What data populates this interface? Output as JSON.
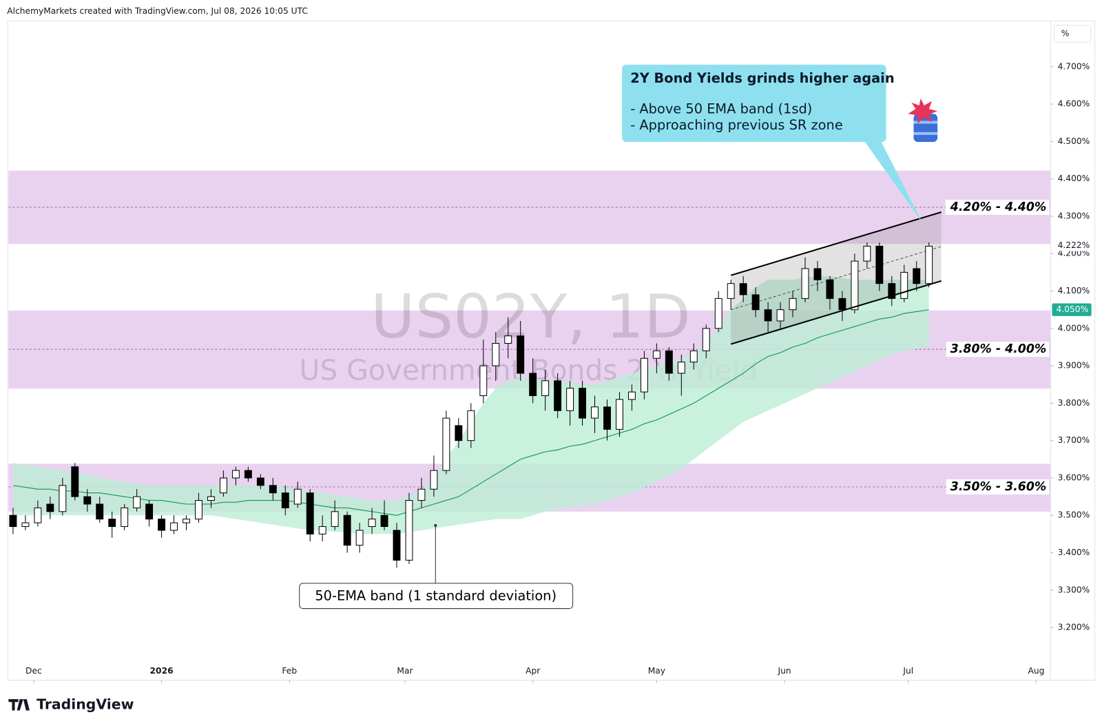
{
  "header": "AlchemyMarkets created with TradingView.com, Jul 08, 2026 10:05 UTC",
  "logo": "TradingView",
  "chart_data": {
    "type": "candlestick",
    "symbol": "US02Y, 1D",
    "symbol_name": "US Government Bonds 2 Yr Yield",
    "unit": "%",
    "x": [
      -5,
      -2,
      1,
      4,
      7,
      10,
      13,
      16,
      19,
      22,
      25,
      28,
      31,
      34,
      37,
      40,
      43,
      46,
      49,
      52,
      55,
      58,
      61,
      64,
      67,
      70,
      73,
      76,
      79,
      82,
      85,
      88,
      91,
      94,
      97,
      100,
      103,
      106,
      109,
      112,
      115,
      118,
      121,
      124,
      127,
      130,
      133,
      136,
      139,
      142,
      145,
      148,
      151,
      154,
      157,
      160,
      163,
      166,
      169,
      172,
      175,
      178,
      181,
      184,
      187,
      190,
      193,
      196,
      199,
      202,
      205,
      208,
      211,
      214,
      217
    ],
    "candles": [
      [
        3.5,
        3.52,
        3.45,
        3.47
      ],
      [
        3.47,
        3.5,
        3.46,
        3.48
      ],
      [
        3.48,
        3.54,
        3.47,
        3.52
      ],
      [
        3.53,
        3.55,
        3.49,
        3.51
      ],
      [
        3.51,
        3.6,
        3.5,
        3.58
      ],
      [
        3.63,
        3.64,
        3.54,
        3.55
      ],
      [
        3.55,
        3.57,
        3.51,
        3.53
      ],
      [
        3.53,
        3.55,
        3.48,
        3.49
      ],
      [
        3.49,
        3.51,
        3.44,
        3.47
      ],
      [
        3.47,
        3.53,
        3.46,
        3.52
      ],
      [
        3.52,
        3.57,
        3.51,
        3.55
      ],
      [
        3.53,
        3.54,
        3.47,
        3.49
      ],
      [
        3.49,
        3.5,
        3.44,
        3.46
      ],
      [
        3.46,
        3.5,
        3.45,
        3.48
      ],
      [
        3.48,
        3.5,
        3.46,
        3.49
      ],
      [
        3.49,
        3.56,
        3.48,
        3.54
      ],
      [
        3.54,
        3.57,
        3.52,
        3.55
      ],
      [
        3.56,
        3.62,
        3.55,
        3.6
      ],
      [
        3.6,
        3.63,
        3.58,
        3.62
      ],
      [
        3.62,
        3.63,
        3.59,
        3.6
      ],
      [
        3.6,
        3.61,
        3.57,
        3.58
      ],
      [
        3.58,
        3.6,
        3.54,
        3.56
      ],
      [
        3.56,
        3.58,
        3.5,
        3.52
      ],
      [
        3.53,
        3.59,
        3.52,
        3.57
      ],
      [
        3.56,
        3.57,
        3.43,
        3.45
      ],
      [
        3.45,
        3.5,
        3.43,
        3.47
      ],
      [
        3.47,
        3.54,
        3.46,
        3.51
      ],
      [
        3.5,
        3.51,
        3.4,
        3.42
      ],
      [
        3.42,
        3.48,
        3.4,
        3.46
      ],
      [
        3.47,
        3.52,
        3.45,
        3.49
      ],
      [
        3.5,
        3.54,
        3.46,
        3.47
      ],
      [
        3.46,
        3.48,
        3.36,
        3.38
      ],
      [
        3.38,
        3.56,
        3.37,
        3.54
      ],
      [
        3.54,
        3.6,
        3.52,
        3.57
      ],
      [
        3.57,
        3.66,
        3.55,
        3.62
      ],
      [
        3.62,
        3.78,
        3.61,
        3.76
      ],
      [
        3.74,
        3.76,
        3.68,
        3.7
      ],
      [
        3.7,
        3.8,
        3.68,
        3.78
      ],
      [
        3.82,
        3.97,
        3.8,
        3.9
      ],
      [
        3.9,
        3.99,
        3.86,
        3.96
      ],
      [
        3.96,
        4.03,
        3.92,
        3.98
      ],
      [
        3.98,
        4.02,
        3.86,
        3.88
      ],
      [
        3.88,
        3.92,
        3.8,
        3.82
      ],
      [
        3.82,
        3.89,
        3.78,
        3.86
      ],
      [
        3.86,
        3.88,
        3.76,
        3.78
      ],
      [
        3.78,
        3.86,
        3.74,
        3.84
      ],
      [
        3.84,
        3.86,
        3.74,
        3.76
      ],
      [
        3.76,
        3.82,
        3.72,
        3.79
      ],
      [
        3.79,
        3.81,
        3.7,
        3.73
      ],
      [
        3.73,
        3.83,
        3.71,
        3.81
      ],
      [
        3.81,
        3.85,
        3.78,
        3.83
      ],
      [
        3.83,
        3.94,
        3.81,
        3.92
      ],
      [
        3.92,
        3.96,
        3.88,
        3.94
      ],
      [
        3.94,
        3.95,
        3.86,
        3.88
      ],
      [
        3.88,
        3.93,
        3.82,
        3.91
      ],
      [
        3.91,
        3.96,
        3.89,
        3.94
      ],
      [
        3.94,
        4.01,
        3.92,
        4.0
      ],
      [
        4.0,
        4.1,
        3.99,
        4.08
      ],
      [
        4.08,
        4.13,
        4.05,
        4.12
      ],
      [
        4.12,
        4.14,
        4.07,
        4.09
      ],
      [
        4.09,
        4.11,
        4.03,
        4.05
      ],
      [
        4.05,
        4.07,
        3.99,
        4.02
      ],
      [
        4.02,
        4.07,
        4.0,
        4.05
      ],
      [
        4.05,
        4.1,
        4.03,
        4.08
      ],
      [
        4.08,
        4.19,
        4.07,
        4.16
      ],
      [
        4.16,
        4.18,
        4.1,
        4.13
      ],
      [
        4.13,
        4.14,
        4.05,
        4.08
      ],
      [
        4.08,
        4.1,
        4.02,
        4.05
      ],
      [
        4.05,
        4.2,
        4.04,
        4.18
      ],
      [
        4.18,
        4.23,
        4.16,
        4.22
      ],
      [
        4.22,
        4.23,
        4.1,
        4.12
      ],
      [
        4.12,
        4.14,
        4.06,
        4.08
      ],
      [
        4.08,
        4.17,
        4.07,
        4.15
      ],
      [
        4.16,
        4.18,
        4.1,
        4.12
      ],
      [
        4.12,
        4.23,
        4.11,
        4.22
      ]
    ],
    "ema": [
      3.58,
      3.575,
      3.57,
      3.57,
      3.565,
      3.565,
      3.56,
      3.56,
      3.555,
      3.55,
      3.545,
      3.54,
      3.54,
      3.535,
      3.53,
      3.53,
      3.53,
      3.535,
      3.535,
      3.54,
      3.54,
      3.54,
      3.54,
      3.535,
      3.53,
      3.525,
      3.52,
      3.52,
      3.515,
      3.51,
      3.505,
      3.5,
      3.51,
      3.52,
      3.53,
      3.54,
      3.55,
      3.57,
      3.59,
      3.61,
      3.63,
      3.65,
      3.66,
      3.67,
      3.675,
      3.685,
      3.69,
      3.7,
      3.71,
      3.72,
      3.73,
      3.745,
      3.755,
      3.77,
      3.785,
      3.8,
      3.82,
      3.84,
      3.86,
      3.88,
      3.905,
      3.925,
      3.935,
      3.95,
      3.96,
      3.975,
      3.985,
      3.995,
      4.005,
      4.015,
      4.025,
      4.03,
      4.04,
      4.045,
      4.05
    ],
    "band_upper": [
      3.64,
      3.635,
      3.63,
      3.625,
      3.62,
      3.615,
      3.61,
      3.6,
      3.595,
      3.59,
      3.585,
      3.58,
      3.58,
      3.58,
      3.58,
      3.58,
      3.58,
      3.58,
      3.58,
      3.58,
      3.58,
      3.58,
      3.575,
      3.57,
      3.565,
      3.56,
      3.555,
      3.55,
      3.545,
      3.54,
      3.54,
      3.54,
      3.55,
      3.57,
      3.6,
      3.65,
      3.7,
      3.75,
      3.8,
      3.84,
      3.86,
      3.87,
      3.87,
      3.86,
      3.86,
      3.855,
      3.85,
      3.85,
      3.86,
      3.87,
      3.88,
      3.89,
      3.9,
      3.91,
      3.92,
      3.935,
      3.96,
      4.0,
      4.05,
      4.08,
      4.11,
      4.13,
      4.13,
      4.13,
      4.135,
      4.14,
      4.14,
      4.135,
      4.13,
      4.13,
      4.13,
      4.13,
      4.13,
      4.13,
      4.13
    ],
    "band_lower": [
      3.5,
      3.5,
      3.5,
      3.5,
      3.5,
      3.5,
      3.5,
      3.5,
      3.5,
      3.5,
      3.5,
      3.5,
      3.5,
      3.5,
      3.5,
      3.5,
      3.5,
      3.495,
      3.49,
      3.485,
      3.48,
      3.475,
      3.47,
      3.465,
      3.46,
      3.46,
      3.455,
      3.455,
      3.45,
      3.45,
      3.45,
      3.45,
      3.455,
      3.46,
      3.465,
      3.47,
      3.475,
      3.48,
      3.485,
      3.49,
      3.49,
      3.49,
      3.5,
      3.51,
      3.515,
      3.52,
      3.525,
      3.53,
      3.54,
      3.55,
      3.56,
      3.575,
      3.59,
      3.605,
      3.625,
      3.65,
      3.675,
      3.7,
      3.725,
      3.75,
      3.765,
      3.78,
      3.795,
      3.81,
      3.825,
      3.84,
      3.855,
      3.87,
      3.885,
      3.9,
      3.915,
      3.93,
      3.94,
      3.945,
      3.95
    ],
    "colors": {
      "up": "#ffffff",
      "down": "#000000",
      "outline": "#000000",
      "ema": "#1e9e5a",
      "band": "#bdeed6",
      "zone": "#e9d2ef",
      "zone_line": "#9c4bb0",
      "channel": "#8a8a8a",
      "callout": "#8fe0ef",
      "ema_label": "#22ab94"
    },
    "xlim": [
      -6.1,
      246.5
    ],
    "ylim": [
      3.059,
      4.822
    ],
    "xticks": [
      {
        "value": 0,
        "label": "Dec"
      },
      {
        "value": 31,
        "label": "2026"
      },
      {
        "value": 62,
        "label": "Feb"
      },
      {
        "value": 90,
        "label": "Mar"
      },
      {
        "value": 121,
        "label": "Apr"
      },
      {
        "value": 151,
        "label": "May"
      },
      {
        "value": 182,
        "label": "Jun"
      },
      {
        "value": 212,
        "label": "Jul"
      },
      {
        "value": 243,
        "label": "Aug"
      }
    ],
    "yticks": [
      {
        "value": 3.2,
        "label": "3.200%"
      },
      {
        "value": 3.3,
        "label": "3.300%"
      },
      {
        "value": 3.4,
        "label": "3.400%"
      },
      {
        "value": 3.5,
        "label": "3.500%"
      },
      {
        "value": 3.6,
        "label": "3.600%"
      },
      {
        "value": 3.7,
        "label": "3.700%"
      },
      {
        "value": 3.8,
        "label": "3.800%"
      },
      {
        "value": 3.9,
        "label": "3.900%"
      },
      {
        "value": 4.0,
        "label": "4.000%"
      },
      {
        "value": 4.1,
        "label": "4.100%"
      },
      {
        "value": 4.2,
        "label": "4.200%"
      },
      {
        "value": 4.3,
        "label": "4.300%"
      },
      {
        "value": 4.4,
        "label": "4.400%"
      },
      {
        "value": 4.5,
        "label": "4.500%"
      },
      {
        "value": 4.6,
        "label": "4.600%"
      },
      {
        "value": 4.7,
        "label": "4.700%"
      }
    ],
    "last_price": {
      "value": 4.222,
      "label": "4.222%"
    },
    "ema_last": {
      "value": 4.05,
      "label": "4.050%"
    },
    "zones": [
      {
        "label": "4.20% - 4.40%",
        "top": 4.422,
        "bottom": 4.226,
        "mid": 4.324
      },
      {
        "label": "3.80% - 4.00%",
        "top": 4.048,
        "bottom": 3.839,
        "mid": 3.944
      },
      {
        "label": "3.50% - 3.60%",
        "top": 3.638,
        "bottom": 3.51,
        "mid": 3.576
      }
    ],
    "channel": {
      "x": [
        169,
        220
      ],
      "upper": [
        4.142,
        4.311
      ],
      "lower": [
        3.958,
        4.127
      ]
    },
    "callout": {
      "lines": [
        "2Y Bond Yields grinds higher again",
        "- Above 50 EMA band (1sd)",
        "- Approaching previous SR zone"
      ],
      "x": 215.5,
      "y": 4.281
    },
    "annotation": {
      "text": "50-EMA band (1 standard deviation)",
      "x": 97.4,
      "y": 3.473
    }
  }
}
